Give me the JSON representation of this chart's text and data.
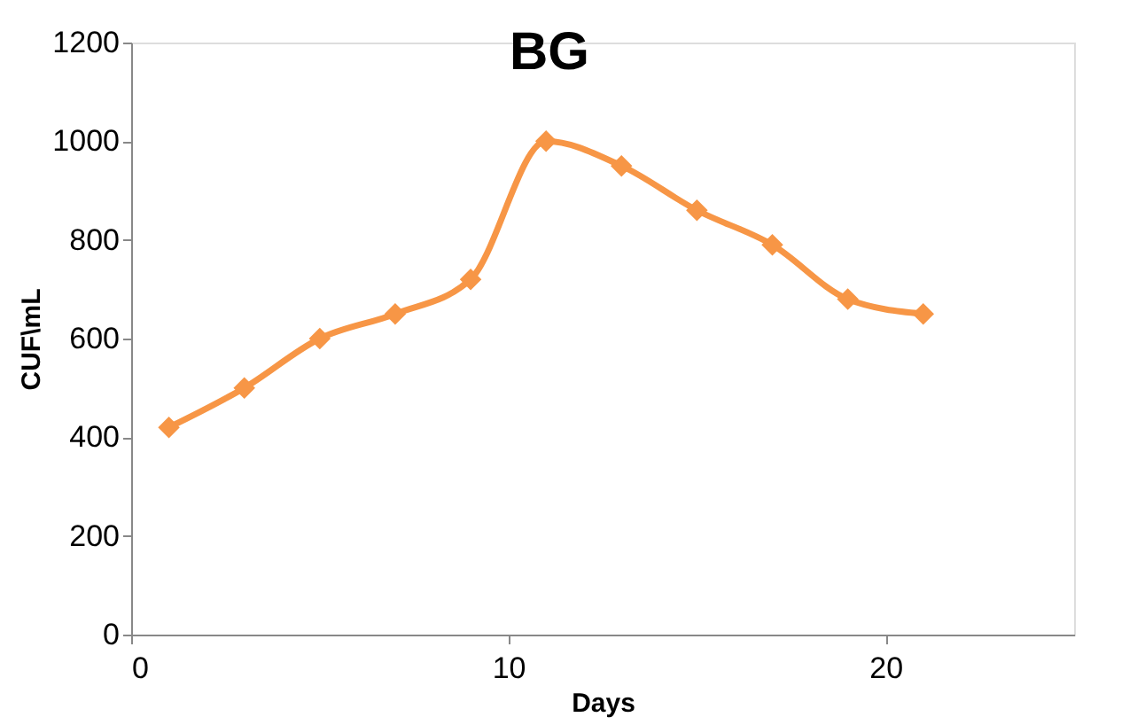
{
  "chart_data": {
    "type": "line",
    "title": "BG",
    "xlabel": "Days",
    "ylabel": "CUF\\mL",
    "x": [
      1,
      3,
      5,
      7,
      9,
      11,
      13,
      15,
      17,
      19,
      21
    ],
    "series": [
      {
        "color": "#f79646",
        "values": [
          420,
          500,
          600,
          650,
          720,
          1000,
          950,
          860,
          790,
          680,
          650
        ]
      }
    ],
    "xlim": [
      0,
      25
    ],
    "xticks": [
      0,
      10,
      20
    ],
    "ylim": [
      0,
      1200
    ],
    "yticks": [
      0,
      200,
      400,
      600,
      800,
      1000,
      1200
    ],
    "grid": false,
    "marker": "diamond",
    "line_style": "solid"
  }
}
